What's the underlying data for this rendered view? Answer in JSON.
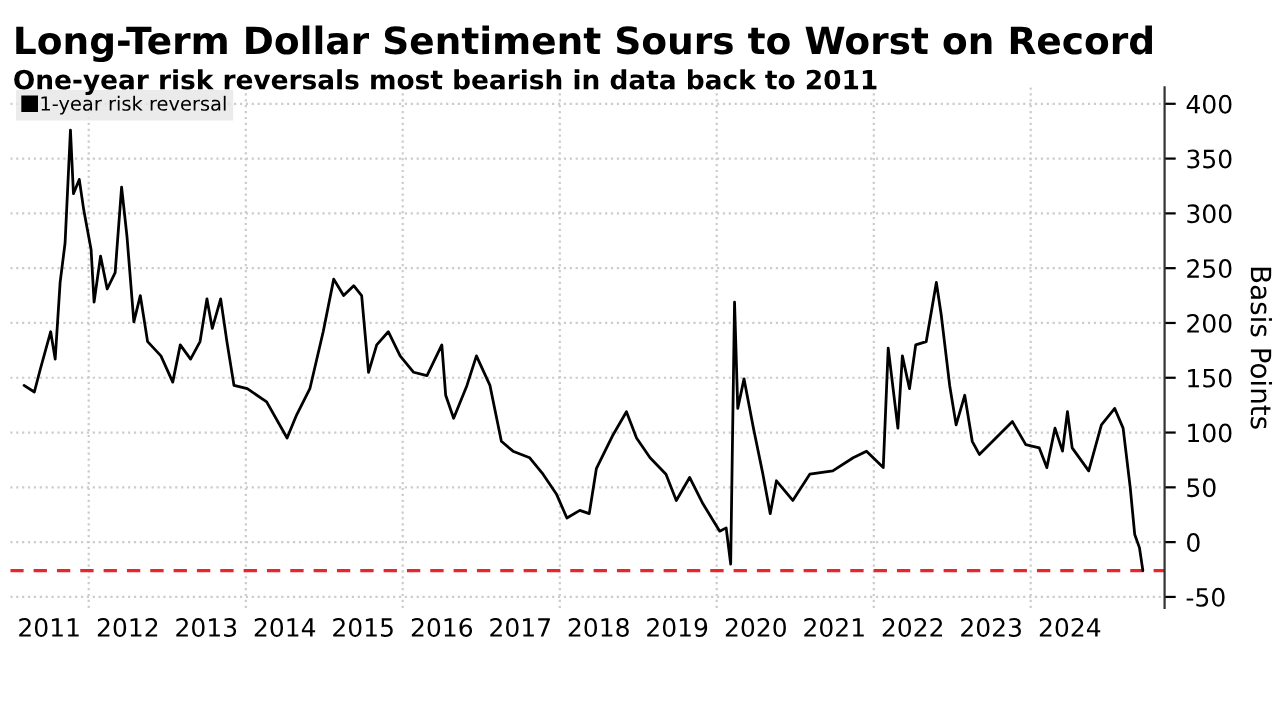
{
  "chart_data": {
    "type": "line",
    "title": "Long-Term Dollar Sentiment Sours to Worst on Record",
    "subtitle": "One-year risk reversals most bearish in data back to 2011",
    "ylabel": "Basis Points",
    "xlim": [
      "2011-01-01",
      "2025-09-15"
    ],
    "ylim": [
      -60,
      415
    ],
    "yticks": [
      -50,
      0,
      50,
      100,
      150,
      200,
      250,
      300,
      350,
      400
    ],
    "xticks": [
      {
        "value": "2011-07-01",
        "label": "2011"
      },
      {
        "value": "2012-07-01",
        "label": "2012"
      },
      {
        "value": "2013-07-01",
        "label": "2013"
      },
      {
        "value": "2014-07-01",
        "label": "2014"
      },
      {
        "value": "2015-07-01",
        "label": "2015"
      },
      {
        "value": "2016-07-01",
        "label": "2016"
      },
      {
        "value": "2017-07-01",
        "label": "2017"
      },
      {
        "value": "2018-07-01",
        "label": "2018"
      },
      {
        "value": "2019-07-01",
        "label": "2019"
      },
      {
        "value": "2020-07-01",
        "label": "2020"
      },
      {
        "value": "2021-07-01",
        "label": "2021"
      },
      {
        "value": "2022-07-01",
        "label": "2022"
      },
      {
        "value": "2023-07-01",
        "label": "2023"
      },
      {
        "value": "2024-07-01",
        "label": "2024"
      },
      {
        "value": "2012-01-01",
        "label": null
      },
      {
        "value": "2014-01-01",
        "label": null
      },
      {
        "value": "2016-01-01",
        "label": null
      },
      {
        "value": "2018-01-01",
        "label": null
      },
      {
        "value": "2020-01-01",
        "label": null
      },
      {
        "value": "2022-01-01",
        "label": null
      },
      {
        "value": "2024-01-01",
        "label": null
      }
    ],
    "grid": true,
    "legend": "top left",
    "line_style": "solid",
    "ref_lines": [
      {
        "axis": "y",
        "value": -26,
        "color": "#e8262c",
        "line_style": "dashed"
      }
    ],
    "x": [
      "2011-03-06",
      "2011-04-23",
      "2011-05-21",
      "2011-07-08",
      "2011-07-29",
      "2011-08-21",
      "2011-09-13",
      "2011-10-08",
      "2011-10-22",
      "2011-11-18",
      "2011-12-09",
      "2012-01-12",
      "2012-01-26",
      "2012-02-25",
      "2012-03-27",
      "2012-05-03",
      "2012-06-02",
      "2012-06-27",
      "2012-07-29",
      "2012-08-28",
      "2012-10-01",
      "2012-12-02",
      "2013-01-26",
      "2013-03-02",
      "2013-04-19",
      "2013-06-02",
      "2013-07-04",
      "2013-07-29",
      "2013-09-06",
      "2013-10-05",
      "2013-11-07",
      "2014-01-08",
      "2014-04-08",
      "2014-07-12",
      "2014-08-25",
      "2014-10-26",
      "2014-12-27",
      "2015-02-14",
      "2015-04-01",
      "2015-05-18",
      "2015-06-24",
      "2015-07-26",
      "2015-09-02",
      "2015-10-26",
      "2015-12-20",
      "2016-02-21",
      "2016-04-23",
      "2016-07-01",
      "2016-07-19",
      "2016-08-25",
      "2016-10-26",
      "2016-12-09",
      "2017-02-10",
      "2017-04-04",
      "2017-05-28",
      "2017-08-14",
      "2017-10-15",
      "2017-12-16",
      "2018-02-03",
      "2018-04-04",
      "2018-05-18",
      "2018-06-20",
      "2018-09-06",
      "2018-11-07",
      "2018-12-24",
      "2019-02-25",
      "2019-05-10",
      "2019-06-27",
      "2019-08-28",
      "2019-10-29",
      "2020-01-15",
      "2020-02-14",
      "2020-03-06",
      "2020-03-24",
      "2020-04-08",
      "2020-05-07",
      "2020-06-20",
      "2020-08-03",
      "2020-09-06",
      "2020-10-05",
      "2020-12-20",
      "2021-03-09",
      "2021-06-24",
      "2021-09-27",
      "2021-11-28",
      "2022-02-14",
      "2022-03-09",
      "2022-04-23",
      "2022-05-14",
      "2022-06-16",
      "2022-07-15",
      "2022-09-02",
      "2022-10-19",
      "2022-11-11",
      "2022-12-20",
      "2023-01-19",
      "2023-02-28",
      "2023-04-04",
      "2023-05-07",
      "2023-07-08",
      "2023-10-08",
      "2023-12-09",
      "2024-02-10",
      "2024-03-16",
      "2024-04-23",
      "2024-05-28",
      "2024-06-20",
      "2024-07-12",
      "2024-09-27",
      "2024-11-25",
      "2025-01-26",
      "2025-03-06",
      "2025-04-08",
      "2025-04-29",
      "2025-05-21",
      "2025-06-06"
    ],
    "series": [
      {
        "name": "1-year risk reversal",
        "color": "#000000",
        "values": [
          143,
          137,
          158,
          192,
          167,
          237,
          273,
          376,
          318,
          331,
          303,
          267,
          219,
          261,
          231,
          246,
          324,
          279,
          201,
          225,
          183,
          170,
          146,
          180,
          167,
          183,
          222,
          195,
          222,
          183,
          143,
          140,
          128,
          95,
          116,
          140,
          192,
          240,
          225,
          234,
          225,
          155,
          180,
          192,
          170,
          155,
          152,
          180,
          134,
          113,
          143,
          170,
          143,
          92,
          83,
          77,
          62,
          44,
          22,
          29,
          26,
          67,
          98,
          119,
          95,
          77,
          62,
          38,
          59,
          35,
          10,
          13,
          -20,
          219,
          122,
          149,
          104,
          62,
          26,
          56,
          38,
          62,
          65,
          77,
          83,
          68,
          177,
          104,
          170,
          140,
          180,
          183,
          237,
          207,
          143,
          107,
          134,
          92,
          80,
          92,
          110,
          89,
          86,
          68,
          104,
          83,
          119,
          86,
          65,
          107,
          122,
          104,
          50,
          7,
          -5,
          -26
        ]
      }
    ]
  }
}
